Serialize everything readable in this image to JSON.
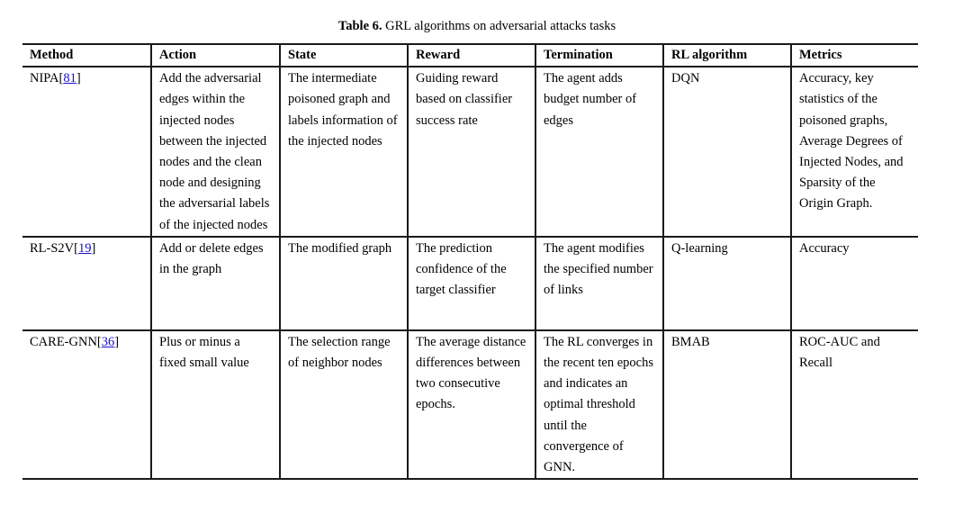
{
  "caption": {
    "label": "Table 6.",
    "text": "GRL algorithms on adversarial attacks tasks"
  },
  "columns": [
    "Method",
    "Action",
    "State",
    "Reward",
    "Termination",
    "RL algorithm",
    "Metrics"
  ],
  "rows": [
    {
      "method": {
        "name": "NIPA",
        "ref": "81"
      },
      "cells": [
        [
          "Add the adversarial",
          "edges within the",
          "injected nodes",
          "between the injected",
          "nodes and the clean",
          "node and designing",
          "the adversarial labels",
          "of the injected nodes"
        ],
        [
          "The intermediate",
          "poisoned graph and",
          "labels information of",
          "the injected nodes"
        ],
        [
          "Guiding reward",
          "based on classifier",
          "success rate"
        ],
        [
          "The agent adds",
          "budget number of",
          "edges"
        ],
        [
          "DQN"
        ],
        [
          "Accuracy, key",
          "statistics of the",
          "poisoned graphs,",
          "Average Degrees of",
          "Injected Nodes, and",
          "Sparsity of the",
          "Origin Graph."
        ]
      ]
    },
    {
      "method": {
        "name": "RL-S2V",
        "ref": "19"
      },
      "cells": [
        [
          "Add or delete edges",
          "in the graph"
        ],
        [
          "The modified graph"
        ],
        [
          "The prediction",
          "confidence of the",
          "target classifier"
        ],
        [
          "The agent modifies",
          "the specified number",
          "of links"
        ],
        [
          "Q-learning"
        ],
        [
          "Accuracy"
        ]
      ]
    },
    {
      "method": {
        "name": "CARE-GNN",
        "ref": "36"
      },
      "cells": [
        [
          "Plus or minus a",
          "fixed small value"
        ],
        [
          "The selection range",
          "of neighbor nodes"
        ],
        [
          "The average distance",
          "differences between",
          "two consecutive",
          "epochs."
        ],
        [
          "The RL converges in",
          "the recent ten epochs",
          "and indicates an",
          "optimal threshold",
          "until the",
          "convergence of",
          "GNN."
        ],
        [
          "BMAB"
        ],
        [
          "ROC-AUC and",
          "Recall"
        ]
      ]
    }
  ]
}
